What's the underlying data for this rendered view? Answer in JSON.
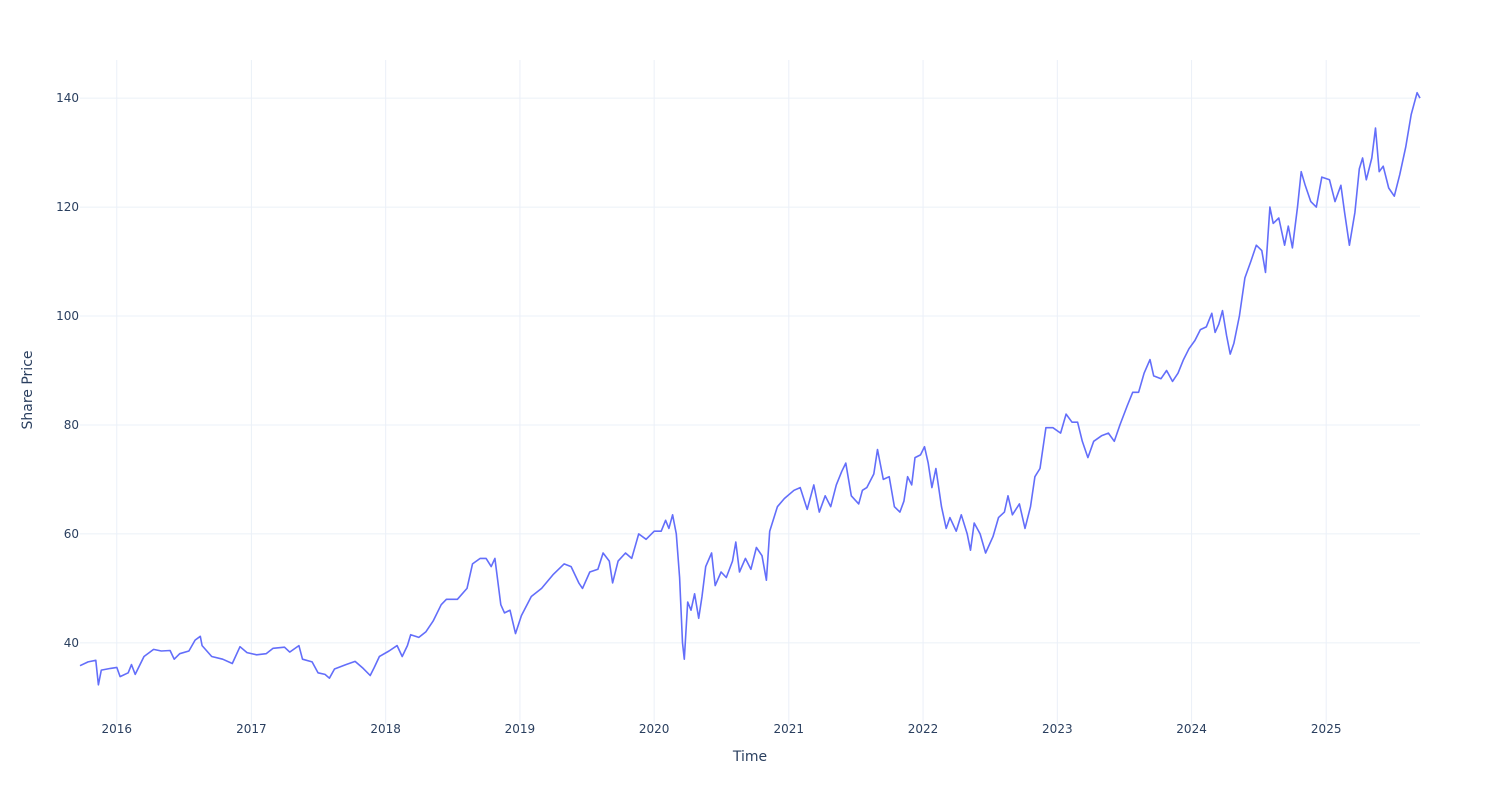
{
  "chart_data": {
    "type": "line",
    "title": "",
    "xlabel": "Time",
    "ylabel": "Share Price",
    "xlim": [
      "2015-09-23",
      "2025-09-13"
    ],
    "ylim": [
      25.1,
      147
    ],
    "grid": true,
    "line_color": "#636efa",
    "grid_color": "#ebf0f8",
    "text_color": "#2a3f5f",
    "x_ticks": [
      "2016",
      "2017",
      "2018",
      "2019",
      "2020",
      "2021",
      "2022",
      "2023",
      "2024",
      "2025"
    ],
    "y_ticks": [
      40,
      60,
      80,
      100,
      120,
      140
    ],
    "series": [
      {
        "name": "Share Price",
        "points": [
          [
            "2015-09-23",
            35.8
          ],
          [
            "2015-10-15",
            36.5
          ],
          [
            "2015-11-05",
            36.8
          ],
          [
            "2015-11-12",
            32.3
          ],
          [
            "2015-11-20",
            35.0
          ],
          [
            "2015-12-15",
            35.3
          ],
          [
            "2016-01-01",
            35.5
          ],
          [
            "2016-01-10",
            33.8
          ],
          [
            "2016-02-01",
            34.5
          ],
          [
            "2016-02-10",
            36.0
          ],
          [
            "2016-02-20",
            34.2
          ],
          [
            "2016-03-15",
            37.5
          ],
          [
            "2016-04-10",
            38.8
          ],
          [
            "2016-05-01",
            38.5
          ],
          [
            "2016-05-25",
            38.6
          ],
          [
            "2016-06-05",
            37.0
          ],
          [
            "2016-06-20",
            38.0
          ],
          [
            "2016-07-15",
            38.5
          ],
          [
            "2016-08-01",
            40.5
          ],
          [
            "2016-08-15",
            41.2
          ],
          [
            "2016-08-20",
            39.5
          ],
          [
            "2016-09-15",
            37.5
          ],
          [
            "2016-10-15",
            37.0
          ],
          [
            "2016-11-10",
            36.2
          ],
          [
            "2016-12-01",
            39.3
          ],
          [
            "2016-12-20",
            38.2
          ],
          [
            "2017-01-15",
            37.8
          ],
          [
            "2017-02-10",
            38.0
          ],
          [
            "2017-03-01",
            39.0
          ],
          [
            "2017-04-01",
            39.2
          ],
          [
            "2017-04-15",
            38.3
          ],
          [
            "2017-05-10",
            39.5
          ],
          [
            "2017-05-20",
            37.0
          ],
          [
            "2017-06-15",
            36.5
          ],
          [
            "2017-07-01",
            34.5
          ],
          [
            "2017-07-20",
            34.2
          ],
          [
            "2017-08-01",
            33.5
          ],
          [
            "2017-08-15",
            35.2
          ],
          [
            "2017-09-15",
            36.0
          ],
          [
            "2017-10-10",
            36.6
          ],
          [
            "2017-11-01",
            35.3
          ],
          [
            "2017-11-20",
            34.0
          ],
          [
            "2017-12-01",
            35.5
          ],
          [
            "2017-12-15",
            37.5
          ],
          [
            "2018-01-10",
            38.5
          ],
          [
            "2018-02-01",
            39.5
          ],
          [
            "2018-02-15",
            37.5
          ],
          [
            "2018-03-01",
            39.5
          ],
          [
            "2018-03-10",
            41.5
          ],
          [
            "2018-04-01",
            41.0
          ],
          [
            "2018-04-20",
            42.0
          ],
          [
            "2018-05-10",
            44.0
          ],
          [
            "2018-06-01",
            47.0
          ],
          [
            "2018-06-15",
            48.0
          ],
          [
            "2018-07-15",
            48.0
          ],
          [
            "2018-08-10",
            50.0
          ],
          [
            "2018-08-25",
            54.5
          ],
          [
            "2018-09-15",
            55.5
          ],
          [
            "2018-10-01",
            55.5
          ],
          [
            "2018-10-15",
            54.0
          ],
          [
            "2018-10-25",
            55.5
          ],
          [
            "2018-11-10",
            47.0
          ],
          [
            "2018-11-20",
            45.5
          ],
          [
            "2018-12-05",
            46.0
          ],
          [
            "2018-12-20",
            41.7
          ],
          [
            "2019-01-05",
            45.0
          ],
          [
            "2019-02-01",
            48.5
          ],
          [
            "2019-03-01",
            50.0
          ],
          [
            "2019-04-01",
            52.5
          ],
          [
            "2019-05-01",
            54.5
          ],
          [
            "2019-05-20",
            54.0
          ],
          [
            "2019-06-10",
            51.0
          ],
          [
            "2019-06-20",
            50.0
          ],
          [
            "2019-07-10",
            53.0
          ],
          [
            "2019-08-01",
            53.5
          ],
          [
            "2019-08-15",
            56.5
          ],
          [
            "2019-09-01",
            55.0
          ],
          [
            "2019-09-10",
            51.0
          ],
          [
            "2019-09-25",
            55.0
          ],
          [
            "2019-10-15",
            56.5
          ],
          [
            "2019-11-01",
            55.5
          ],
          [
            "2019-11-20",
            60.0
          ],
          [
            "2019-12-10",
            59.0
          ],
          [
            "2020-01-01",
            60.5
          ],
          [
            "2020-01-20",
            60.5
          ],
          [
            "2020-02-01",
            62.5
          ],
          [
            "2020-02-10",
            61.0
          ],
          [
            "2020-02-20",
            63.5
          ],
          [
            "2020-03-01",
            60.0
          ],
          [
            "2020-03-10",
            52.0
          ],
          [
            "2020-03-18",
            40.0
          ],
          [
            "2020-03-23",
            37.0
          ],
          [
            "2020-04-01",
            47.5
          ],
          [
            "2020-04-10",
            46.0
          ],
          [
            "2020-04-20",
            49.0
          ],
          [
            "2020-05-01",
            44.5
          ],
          [
            "2020-05-10",
            48.5
          ],
          [
            "2020-05-20",
            54.0
          ],
          [
            "2020-06-05",
            56.5
          ],
          [
            "2020-06-15",
            50.5
          ],
          [
            "2020-07-01",
            53.0
          ],
          [
            "2020-07-15",
            52.0
          ],
          [
            "2020-08-01",
            55.0
          ],
          [
            "2020-08-10",
            58.5
          ],
          [
            "2020-08-20",
            53.0
          ],
          [
            "2020-09-05",
            55.5
          ],
          [
            "2020-09-20",
            53.5
          ],
          [
            "2020-10-05",
            57.5
          ],
          [
            "2020-10-20",
            56.0
          ],
          [
            "2020-11-01",
            51.5
          ],
          [
            "2020-11-10",
            60.5
          ],
          [
            "2020-12-01",
            65.0
          ],
          [
            "2020-12-20",
            66.5
          ],
          [
            "2021-01-15",
            68.0
          ],
          [
            "2021-02-01",
            68.5
          ],
          [
            "2021-02-20",
            64.5
          ],
          [
            "2021-03-10",
            69.0
          ],
          [
            "2021-03-25",
            64.0
          ],
          [
            "2021-04-10",
            67.0
          ],
          [
            "2021-04-25",
            65.0
          ],
          [
            "2021-05-10",
            69.0
          ],
          [
            "2021-05-25",
            71.5
          ],
          [
            "2021-06-05",
            73.0
          ],
          [
            "2021-06-20",
            67.0
          ],
          [
            "2021-07-10",
            65.5
          ],
          [
            "2021-07-20",
            68.0
          ],
          [
            "2021-08-01",
            68.5
          ],
          [
            "2021-08-20",
            71.0
          ],
          [
            "2021-08-30",
            75.5
          ],
          [
            "2021-09-15",
            70.0
          ],
          [
            "2021-10-01",
            70.5
          ],
          [
            "2021-10-15",
            65.0
          ],
          [
            "2021-10-30",
            64.0
          ],
          [
            "2021-11-10",
            66.0
          ],
          [
            "2021-11-20",
            70.5
          ],
          [
            "2021-12-01",
            69.0
          ],
          [
            "2021-12-10",
            74.0
          ],
          [
            "2021-12-25",
            74.5
          ],
          [
            "2022-01-05",
            76.0
          ],
          [
            "2022-01-15",
            73.0
          ],
          [
            "2022-01-25",
            68.5
          ],
          [
            "2022-02-05",
            72.0
          ],
          [
            "2022-02-20",
            65.0
          ],
          [
            "2022-03-05",
            61.0
          ],
          [
            "2022-03-15",
            63.0
          ],
          [
            "2022-04-01",
            60.5
          ],
          [
            "2022-04-15",
            63.5
          ],
          [
            "2022-05-01",
            60.0
          ],
          [
            "2022-05-10",
            57.0
          ],
          [
            "2022-05-20",
            62.0
          ],
          [
            "2022-06-05",
            60.0
          ],
          [
            "2022-06-20",
            56.5
          ],
          [
            "2022-07-10",
            59.5
          ],
          [
            "2022-07-25",
            63.0
          ],
          [
            "2022-08-10",
            64.0
          ],
          [
            "2022-08-20",
            67.0
          ],
          [
            "2022-09-01",
            63.5
          ],
          [
            "2022-09-20",
            65.5
          ],
          [
            "2022-10-05",
            61.0
          ],
          [
            "2022-10-20",
            65.0
          ],
          [
            "2022-11-01",
            70.5
          ],
          [
            "2022-11-15",
            72.0
          ],
          [
            "2022-12-01",
            79.5
          ],
          [
            "2022-12-20",
            79.5
          ],
          [
            "2023-01-10",
            78.5
          ],
          [
            "2023-01-25",
            82.0
          ],
          [
            "2023-02-10",
            80.5
          ],
          [
            "2023-02-25",
            80.5
          ],
          [
            "2023-03-10",
            77.0
          ],
          [
            "2023-03-25",
            74.0
          ],
          [
            "2023-04-10",
            77.0
          ],
          [
            "2023-05-01",
            78.0
          ],
          [
            "2023-05-20",
            78.5
          ],
          [
            "2023-06-05",
            77.0
          ],
          [
            "2023-06-20",
            80.0
          ],
          [
            "2023-07-10",
            83.5
          ],
          [
            "2023-07-25",
            86.0
          ],
          [
            "2023-08-10",
            86.0
          ],
          [
            "2023-08-25",
            89.5
          ],
          [
            "2023-09-10",
            92.0
          ],
          [
            "2023-09-20",
            89.0
          ],
          [
            "2023-10-10",
            88.5
          ],
          [
            "2023-10-25",
            90.0
          ],
          [
            "2023-11-10",
            88.0
          ],
          [
            "2023-11-25",
            89.5
          ],
          [
            "2023-12-10",
            92.0
          ],
          [
            "2023-12-25",
            94.0
          ],
          [
            "2024-01-10",
            95.5
          ],
          [
            "2024-01-25",
            97.5
          ],
          [
            "2024-02-10",
            98.0
          ],
          [
            "2024-02-25",
            100.5
          ],
          [
            "2024-03-05",
            97.0
          ],
          [
            "2024-03-15",
            98.5
          ],
          [
            "2024-03-25",
            101.0
          ],
          [
            "2024-04-05",
            96.5
          ],
          [
            "2024-04-15",
            93.0
          ],
          [
            "2024-04-25",
            95.0
          ],
          [
            "2024-05-10",
            100.0
          ],
          [
            "2024-05-25",
            107.0
          ],
          [
            "2024-06-10",
            110.0
          ],
          [
            "2024-06-25",
            113.0
          ],
          [
            "2024-07-10",
            112.0
          ],
          [
            "2024-07-20",
            108.0
          ],
          [
            "2024-08-01",
            120.0
          ],
          [
            "2024-08-10",
            117.0
          ],
          [
            "2024-08-25",
            118.0
          ],
          [
            "2024-09-10",
            113.0
          ],
          [
            "2024-09-20",
            116.5
          ],
          [
            "2024-10-01",
            112.5
          ],
          [
            "2024-10-15",
            120.0
          ],
          [
            "2024-10-25",
            126.5
          ],
          [
            "2024-11-05",
            124.0
          ],
          [
            "2024-11-20",
            121.0
          ],
          [
            "2024-12-05",
            120.0
          ],
          [
            "2024-12-20",
            125.5
          ],
          [
            "2025-01-10",
            125.0
          ],
          [
            "2025-01-25",
            121.0
          ],
          [
            "2025-02-10",
            124.0
          ],
          [
            "2025-02-20",
            119.0
          ],
          [
            "2025-03-05",
            113.0
          ],
          [
            "2025-03-20",
            119.0
          ],
          [
            "2025-04-01",
            127.0
          ],
          [
            "2025-04-10",
            129.0
          ],
          [
            "2025-04-20",
            125.0
          ],
          [
            "2025-05-05",
            129.0
          ],
          [
            "2025-05-15",
            134.5
          ],
          [
            "2025-05-25",
            126.5
          ],
          [
            "2025-06-05",
            127.5
          ],
          [
            "2025-06-20",
            123.5
          ],
          [
            "2025-07-05",
            122.0
          ],
          [
            "2025-07-20",
            126.0
          ],
          [
            "2025-08-05",
            131.0
          ],
          [
            "2025-08-20",
            137.0
          ],
          [
            "2025-09-05",
            141.0
          ],
          [
            "2025-09-13",
            140.0
          ]
        ]
      }
    ]
  }
}
